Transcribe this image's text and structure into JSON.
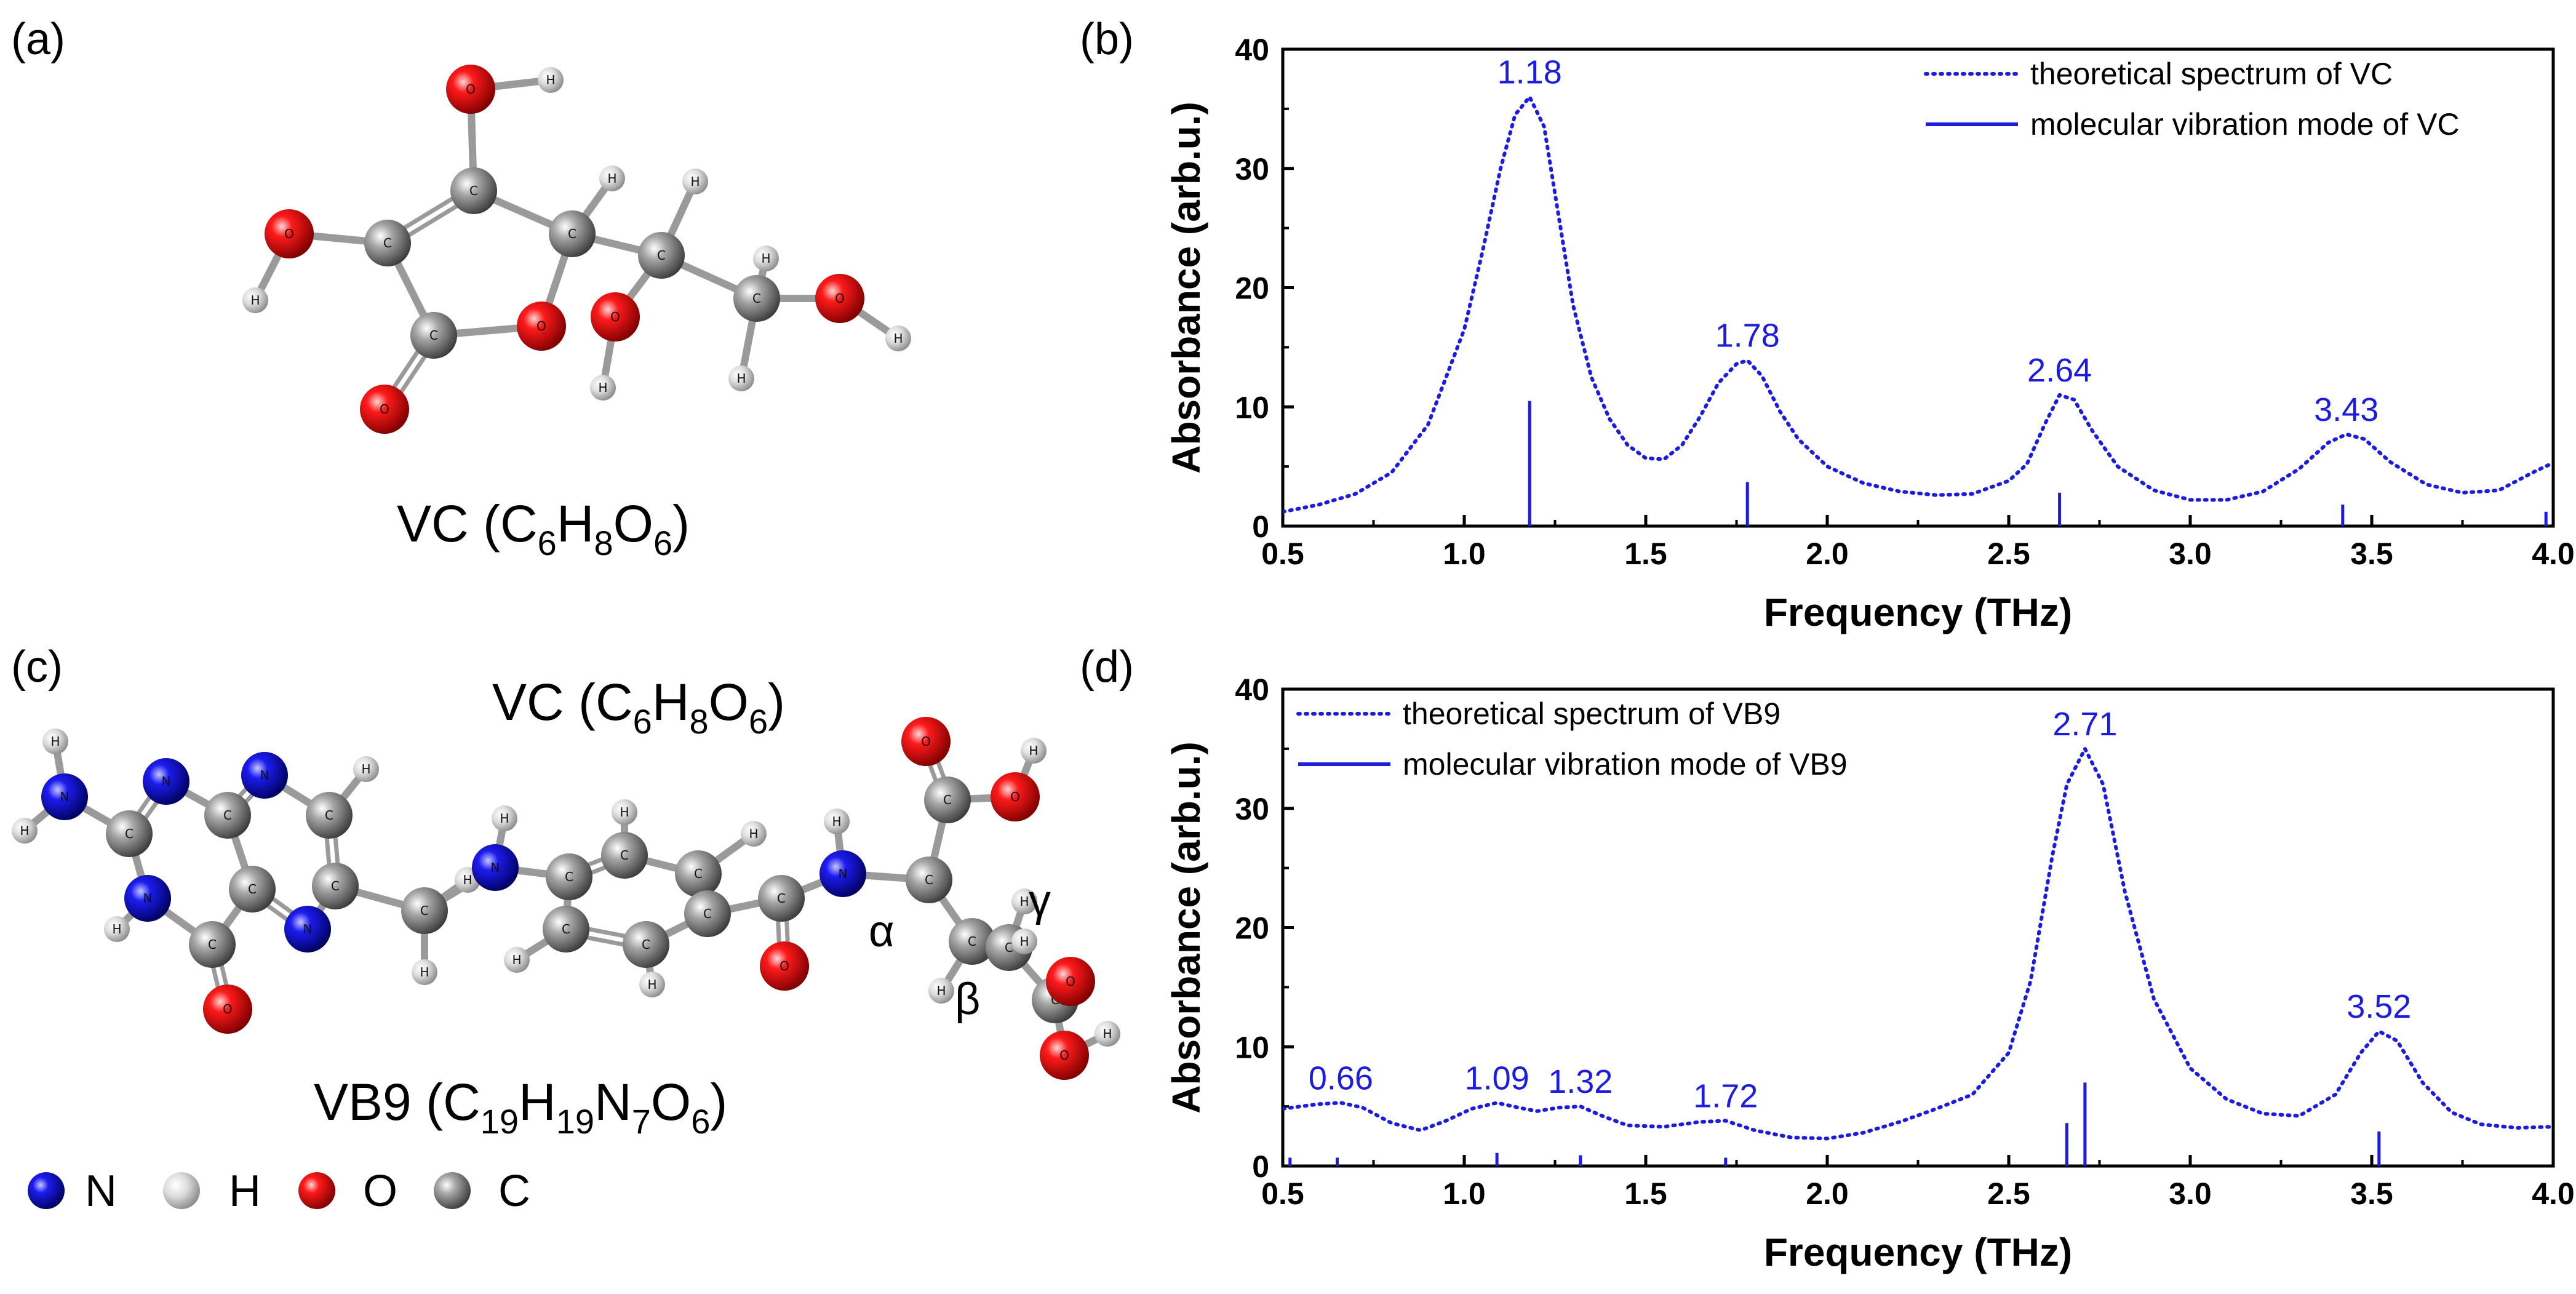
{
  "panels": {
    "a": "(a)",
    "b": "(b)",
    "c": "(c)",
    "d": "(d)"
  },
  "molecules": {
    "vc": {
      "base": "VC (C",
      "c": "6",
      "h_label": "H",
      "h": "8",
      "o_label": "O",
      "o": "6",
      "close": ")"
    },
    "vc_repeat": {
      "base": "VC (C",
      "c": "6",
      "h_label": "H",
      "h": "8",
      "o_label": "O",
      "o": "6",
      "close": ")"
    },
    "vb9": {
      "base": "VB9 (C",
      "c": "19",
      "h_label": "H",
      "h": "19",
      "n_label": "N",
      "n": "7",
      "o_label": "O",
      "o": "6",
      "close": ")"
    },
    "greek": {
      "alpha": "α",
      "beta": "β",
      "gamma": "γ"
    },
    "atom_letters": {
      "carbon": "C",
      "hydrogen": "H",
      "oxygen": "O",
      "nitrogen": "N"
    }
  },
  "atom_legend": [
    {
      "label": "N",
      "color": "#1414c8"
    },
    {
      "label": "H",
      "color": "#d9d9d9"
    },
    {
      "label": "O",
      "color": "#e00000"
    },
    {
      "label": "C",
      "color": "#8c8c8c"
    }
  ],
  "colors": {
    "series": "#1c1ce0",
    "axis": "#000000"
  },
  "chart_data": [
    {
      "type": "line",
      "panel": "(b)",
      "title": "",
      "xlabel": "Frequency (THz)",
      "ylabel": "Absorbance (arb.u.)",
      "xlim": [
        0.5,
        4.0
      ],
      "ylim": [
        0,
        40
      ],
      "xticks": [
        "0.5",
        "1.0",
        "1.5",
        "2.0",
        "2.5",
        "3.0",
        "3.5",
        "4.0"
      ],
      "yticks": [
        "0",
        "10",
        "20",
        "30",
        "40"
      ],
      "legend_position": "top-right",
      "series": [
        {
          "name": "theoretical spectrum of VC",
          "style": "dotted",
          "x": [
            0.5,
            0.6,
            0.7,
            0.8,
            0.9,
            1.0,
            1.05,
            1.1,
            1.14,
            1.18,
            1.22,
            1.26,
            1.3,
            1.35,
            1.4,
            1.45,
            1.5,
            1.55,
            1.6,
            1.65,
            1.7,
            1.75,
            1.78,
            1.82,
            1.87,
            1.92,
            2.0,
            2.1,
            2.2,
            2.3,
            2.4,
            2.5,
            2.55,
            2.6,
            2.64,
            2.68,
            2.73,
            2.8,
            2.9,
            3.0,
            3.1,
            3.2,
            3.3,
            3.38,
            3.43,
            3.48,
            3.55,
            3.65,
            3.75,
            3.85,
            3.95,
            4.0
          ],
          "y": [
            1.2,
            1.8,
            2.7,
            4.5,
            8.5,
            16.5,
            23.0,
            30.0,
            34.5,
            36.0,
            33.5,
            26.0,
            18.5,
            12.5,
            9.0,
            6.8,
            5.7,
            5.6,
            6.8,
            9.2,
            12.0,
            13.6,
            13.9,
            12.6,
            9.6,
            7.3,
            5.0,
            3.6,
            2.9,
            2.6,
            2.7,
            3.8,
            5.2,
            8.6,
            11.0,
            10.6,
            8.0,
            5.0,
            3.0,
            2.2,
            2.2,
            2.9,
            4.8,
            7.0,
            7.7,
            7.3,
            5.4,
            3.5,
            2.8,
            3.0,
            4.6,
            5.3
          ]
        },
        {
          "name": "molecular vibration mode of VC",
          "style": "sticks",
          "x": [
            1.18,
            1.78,
            2.64,
            3.42,
            3.98
          ],
          "y": [
            10.5,
            3.7,
            2.8,
            1.8,
            1.2
          ]
        }
      ],
      "annotations": [
        {
          "text": "1.18",
          "x": 1.18,
          "y": 36.0
        },
        {
          "text": "1.78",
          "x": 1.78,
          "y": 13.9
        },
        {
          "text": "2.64",
          "x": 2.64,
          "y": 11.0
        },
        {
          "text": "3.43",
          "x": 3.43,
          "y": 7.7
        }
      ]
    },
    {
      "type": "line",
      "panel": "(d)",
      "title": "",
      "xlabel": "Frequency (THz)",
      "ylabel": "Absorbance (arb.u.)",
      "xlim": [
        0.5,
        4.0
      ],
      "ylim": [
        0,
        40
      ],
      "xticks": [
        "0.5",
        "1.0",
        "1.5",
        "2.0",
        "2.5",
        "3.0",
        "3.5",
        "4.0"
      ],
      "yticks": [
        "0",
        "10",
        "20",
        "30",
        "40"
      ],
      "legend_position": "top-left",
      "series": [
        {
          "name": "theoretical spectrum of VB9",
          "style": "dotted",
          "x": [
            0.5,
            0.55,
            0.6,
            0.66,
            0.72,
            0.8,
            0.88,
            0.95,
            1.02,
            1.09,
            1.15,
            1.2,
            1.26,
            1.32,
            1.38,
            1.45,
            1.55,
            1.65,
            1.72,
            1.8,
            1.9,
            2.0,
            2.1,
            2.2,
            2.3,
            2.4,
            2.5,
            2.56,
            2.62,
            2.66,
            2.71,
            2.76,
            2.82,
            2.9,
            3.0,
            3.1,
            3.2,
            3.3,
            3.4,
            3.47,
            3.52,
            3.57,
            3.64,
            3.72,
            3.8,
            3.9,
            4.0
          ],
          "y": [
            4.8,
            5.0,
            5.2,
            5.3,
            4.9,
            3.6,
            3.0,
            3.8,
            4.8,
            5.3,
            4.9,
            4.6,
            4.9,
            5.0,
            4.2,
            3.4,
            3.3,
            3.7,
            3.8,
            3.0,
            2.4,
            2.3,
            2.8,
            3.7,
            4.8,
            6.0,
            9.5,
            15.5,
            26.0,
            32.0,
            35.0,
            32.0,
            23.0,
            14.0,
            8.2,
            5.6,
            4.4,
            4.2,
            6.0,
            9.5,
            11.3,
            10.5,
            7.0,
            4.5,
            3.5,
            3.2,
            3.3
          ]
        },
        {
          "name": "molecular vibration mode of VB9",
          "style": "sticks",
          "x": [
            0.52,
            0.65,
            1.09,
            1.32,
            1.72,
            2.66,
            2.71,
            3.52
          ],
          "y": [
            0.7,
            0.7,
            1.1,
            0.9,
            0.7,
            3.6,
            7.0,
            2.9
          ]
        }
      ],
      "annotations": [
        {
          "text": "0.66",
          "x": 0.66,
          "y": 5.3
        },
        {
          "text": "1.09",
          "x": 1.09,
          "y": 5.3
        },
        {
          "text": "1.32",
          "x": 1.32,
          "y": 5.0
        },
        {
          "text": "1.72",
          "x": 1.72,
          "y": 3.8
        },
        {
          "text": "2.71",
          "x": 2.71,
          "y": 35.0
        },
        {
          "text": "3.52",
          "x": 3.52,
          "y": 11.3
        }
      ]
    }
  ]
}
